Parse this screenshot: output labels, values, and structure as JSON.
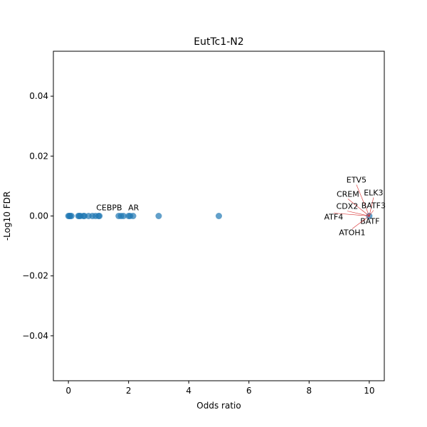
{
  "chart_data": {
    "type": "scatter",
    "title": "EutTc1-N2",
    "xlabel": "Odds ratio",
    "ylabel": "-Log10 FDR",
    "xlim": [
      -0.5,
      10.5
    ],
    "ylim": [
      -0.055,
      0.055
    ],
    "xticks": [
      0,
      2,
      4,
      6,
      8,
      10
    ],
    "yticks": [
      -0.04,
      -0.02,
      0.0,
      0.02,
      0.04
    ],
    "xtick_labels": [
      "0",
      "2",
      "4",
      "6",
      "8",
      "10"
    ],
    "ytick_labels": [
      "−0.04",
      "−0.02",
      "0.00",
      "0.02",
      "0.04"
    ],
    "grid": false,
    "marker_color": "#1f77b4",
    "annotation_line_color": "#d62728",
    "points": [
      {
        "x": 0,
        "y": 0
      },
      {
        "x": 0.03,
        "y": 0
      },
      {
        "x": 0.06,
        "y": 0
      },
      {
        "x": 0.1,
        "y": 0
      },
      {
        "x": 0.33,
        "y": 0
      },
      {
        "x": 0.36,
        "y": 0
      },
      {
        "x": 0.4,
        "y": 0
      },
      {
        "x": 0.5,
        "y": 0
      },
      {
        "x": 0.53,
        "y": 0
      },
      {
        "x": 0.67,
        "y": 0
      },
      {
        "x": 0.8,
        "y": 0
      },
      {
        "x": 0.9,
        "y": 0
      },
      {
        "x": 1.0,
        "y": 0
      },
      {
        "x": 1.03,
        "y": 0
      },
      {
        "x": 1.67,
        "y": 0
      },
      {
        "x": 1.75,
        "y": 0
      },
      {
        "x": 1.83,
        "y": 0
      },
      {
        "x": 2.0,
        "y": 0
      },
      {
        "x": 2.05,
        "y": 0
      },
      {
        "x": 2.15,
        "y": 0
      },
      {
        "x": 3.0,
        "y": 0
      },
      {
        "x": 5.0,
        "y": 0
      },
      {
        "x": 10.0,
        "y": 0
      }
    ],
    "annotations": [
      {
        "label": "CEBPB",
        "x": 1.0,
        "y": 0
      },
      {
        "label": "AR",
        "x": 2.0,
        "y": 0
      },
      {
        "label": "ETV5",
        "x": 10.0,
        "y": 0
      },
      {
        "label": "ELK3",
        "x": 10.0,
        "y": 0
      },
      {
        "label": "CREM",
        "x": 10.0,
        "y": 0
      },
      {
        "label": "CDX2",
        "x": 10.0,
        "y": 0
      },
      {
        "label": "BATF3",
        "x": 10.0,
        "y": 0
      },
      {
        "label": "ATF4",
        "x": 10.0,
        "y": 0
      },
      {
        "label": "BATF",
        "x": 10.0,
        "y": 0
      },
      {
        "label": "ATOH1",
        "x": 10.0,
        "y": 0
      }
    ]
  }
}
